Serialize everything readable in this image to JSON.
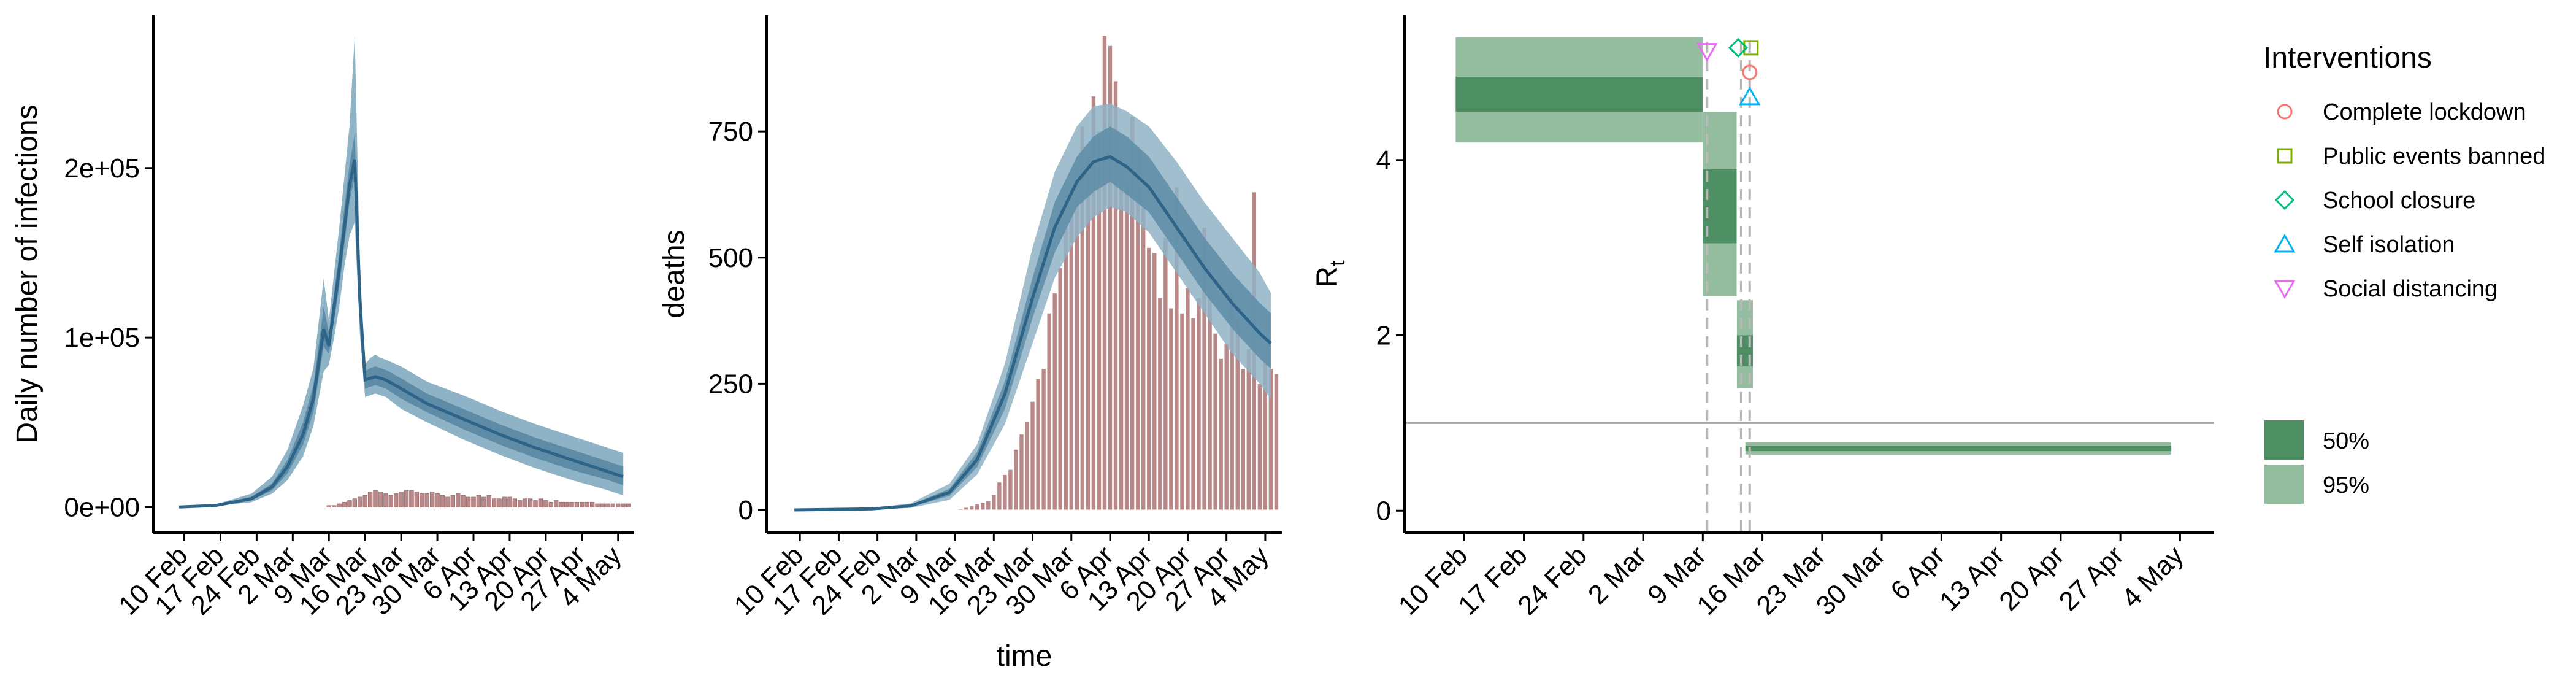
{
  "chart_data": [
    {
      "type": "area",
      "ylabel": "Daily number of infections",
      "xlabel": "",
      "x_range": [
        "2020-02-04",
        "2020-05-07"
      ],
      "ylim": [
        -15000,
        290000
      ],
      "xticks": [
        "10 Feb",
        "17 Feb",
        "24 Feb",
        "2 Mar",
        "9 Mar",
        "16 Mar",
        "23 Mar",
        "30 Mar",
        "6 Apr",
        "13 Apr",
        "20 Apr",
        "27 Apr",
        "4 May"
      ],
      "xtick_dates": [
        "2020-02-10",
        "2020-02-17",
        "2020-02-24",
        "2020-03-02",
        "2020-03-09",
        "2020-03-16",
        "2020-03-23",
        "2020-03-30",
        "2020-04-06",
        "2020-04-13",
        "2020-04-20",
        "2020-04-27",
        "2020-05-04"
      ],
      "yticks": [
        0,
        100000,
        200000
      ],
      "ytick_labels": [
        "0e+00",
        "1e+05",
        "2e+05"
      ],
      "colors": {
        "band95": "#8fb3c6",
        "band50": "#5e8ca7",
        "median": "#2e6487",
        "bar": "#b9898a"
      },
      "infections": {
        "dates": [
          "2020-02-09",
          "2020-02-16",
          "2020-02-23",
          "2020-02-27",
          "2020-03-01",
          "2020-03-04",
          "2020-03-06",
          "2020-03-08",
          "2020-03-09",
          "2020-03-10",
          "2020-03-11",
          "2020-03-12",
          "2020-03-13",
          "2020-03-14",
          "2020-03-15",
          "2020-03-16",
          "2020-03-17",
          "2020-03-18",
          "2020-03-19",
          "2020-03-20",
          "2020-03-23",
          "2020-03-28",
          "2020-04-04",
          "2020-04-11",
          "2020-04-18",
          "2020-04-25",
          "2020-05-02",
          "2020-05-05"
        ],
        "median": [
          100,
          1000,
          5000,
          12000,
          24000,
          43000,
          64000,
          105000,
          95000,
          118000,
          140000,
          165000,
          190000,
          205000,
          122000,
          75000,
          76000,
          77000,
          76000,
          75000,
          70000,
          61000,
          52000,
          43000,
          35000,
          28000,
          21000,
          18000
        ],
        "lo50": [
          80,
          800,
          4000,
          10000,
          20000,
          37000,
          56000,
          95000,
          90000,
          110000,
          130000,
          155000,
          180000,
          195000,
          112000,
          70000,
          71000,
          72000,
          71000,
          70000,
          64000,
          56000,
          46000,
          37000,
          29000,
          22000,
          16000,
          13000
        ],
        "hi50": [
          130,
          1200,
          6200,
          14000,
          28000,
          50000,
          72000,
          118000,
          103000,
          126000,
          150000,
          177000,
          202000,
          220000,
          130000,
          80000,
          82000,
          83000,
          82000,
          81000,
          76000,
          67000,
          58000,
          49000,
          41000,
          34000,
          27000,
          24000
        ],
        "lo95": [
          60,
          600,
          3000,
          8000,
          16000,
          30000,
          48000,
          80000,
          84000,
          100000,
          118000,
          142000,
          160000,
          168000,
          102000,
          65000,
          66000,
          67000,
          66000,
          65000,
          58000,
          50000,
          40000,
          31000,
          23000,
          16000,
          10000,
          7000
        ],
        "hi95": [
          170,
          1600,
          8000,
          18000,
          34000,
          60000,
          82000,
          135000,
          110000,
          138000,
          165000,
          195000,
          225000,
          278000,
          142000,
          84000,
          88000,
          90000,
          88000,
          87000,
          83000,
          74000,
          66000,
          57000,
          49000,
          42000,
          35000,
          32000
        ]
      },
      "deaths_bars": {
        "start_date": "2020-03-07",
        "values": [
          0,
          0,
          1,
          1,
          2,
          3,
          4,
          5,
          6,
          7,
          9,
          10,
          9,
          8,
          7,
          8,
          9,
          10,
          10,
          9,
          8,
          8,
          9,
          8,
          7,
          6,
          7,
          8,
          7,
          6,
          6,
          7,
          6,
          7,
          5,
          5,
          6,
          6,
          5,
          4,
          5,
          5,
          4,
          5,
          4,
          3,
          4,
          3,
          3,
          3,
          3,
          3,
          3,
          3,
          2,
          2,
          2,
          2,
          2,
          2,
          2
        ],
        "scale": 1
      }
    },
    {
      "type": "bar",
      "ylabel": "deaths",
      "xlabel": "time",
      "x_range": [
        "2020-02-04",
        "2020-05-07"
      ],
      "ylim": [
        -45,
        980
      ],
      "xticks": [
        "10 Feb",
        "17 Feb",
        "24 Feb",
        "2 Mar",
        "9 Mar",
        "16 Mar",
        "23 Mar",
        "30 Mar",
        "6 Apr",
        "13 Apr",
        "20 Apr",
        "27 Apr",
        "4 May"
      ],
      "xtick_dates": [
        "2020-02-10",
        "2020-02-17",
        "2020-02-24",
        "2020-03-02",
        "2020-03-09",
        "2020-03-16",
        "2020-03-23",
        "2020-03-30",
        "2020-04-06",
        "2020-04-13",
        "2020-04-20",
        "2020-04-27",
        "2020-05-04"
      ],
      "yticks": [
        0,
        250,
        500,
        750
      ],
      "ytick_labels": [
        "0",
        "250",
        "500",
        "750"
      ],
      "colors": {
        "band95": "#8fb3c6",
        "band50": "#5e8ca7",
        "median": "#2e6487",
        "bar": "#b9898a"
      },
      "deaths": {
        "start_date": "2020-03-07",
        "values": [
          0,
          0,
          0,
          2,
          5,
          8,
          12,
          15,
          18,
          30,
          55,
          70,
          80,
          120,
          150,
          175,
          215,
          260,
          280,
          390,
          430,
          480,
          560,
          600,
          680,
          760,
          700,
          820,
          750,
          940,
          920,
          850,
          700,
          650,
          780,
          720,
          600,
          520,
          510,
          420,
          540,
          400,
          640,
          390,
          440,
          380,
          420,
          560,
          430,
          350,
          300,
          330,
          430,
          380,
          280,
          320,
          630,
          250,
          300,
          280,
          270
        ],
        "ylim_data": [
          0,
          950
        ]
      },
      "fit": {
        "dates": [
          "2020-02-09",
          "2020-02-23",
          "2020-03-01",
          "2020-03-08",
          "2020-03-13",
          "2020-03-18",
          "2020-03-23",
          "2020-03-27",
          "2020-03-31",
          "2020-04-03",
          "2020-04-06",
          "2020-04-09",
          "2020-04-13",
          "2020-04-18",
          "2020-04-23",
          "2020-04-28",
          "2020-05-03",
          "2020-05-05"
        ],
        "median": [
          0,
          2,
          8,
          35,
          100,
          230,
          420,
          560,
          650,
          690,
          700,
          680,
          640,
          560,
          480,
          410,
          350,
          330
        ],
        "lo50": [
          0,
          1,
          6,
          28,
          85,
          200,
          380,
          510,
          600,
          630,
          650,
          625,
          590,
          510,
          430,
          360,
          300,
          280
        ],
        "hi50": [
          0,
          3,
          10,
          42,
          115,
          255,
          460,
          610,
          700,
          740,
          760,
          740,
          700,
          620,
          540,
          470,
          410,
          390
        ],
        "lo95": [
          0,
          1,
          4,
          20,
          70,
          170,
          330,
          460,
          540,
          580,
          600,
          590,
          550,
          470,
          390,
          310,
          250,
          220
        ],
        "hi95": [
          0,
          4,
          13,
          52,
          130,
          290,
          520,
          670,
          760,
          800,
          805,
          790,
          760,
          690,
          610,
          540,
          470,
          430
        ]
      }
    },
    {
      "type": "bar",
      "ylabel": "R",
      "ylabel_subscript": "t",
      "xlabel": "",
      "x_range": [
        "2020-02-03",
        "2020-05-08"
      ],
      "ylim": [
        -0.25,
        5.65
      ],
      "xticks": [
        "10 Feb",
        "17 Feb",
        "24 Feb",
        "2 Mar",
        "9 Mar",
        "16 Mar",
        "23 Mar",
        "30 Mar",
        "6 Apr",
        "13 Apr",
        "20 Apr",
        "27 Apr",
        "4 May"
      ],
      "xtick_dates": [
        "2020-02-10",
        "2020-02-17",
        "2020-02-24",
        "2020-03-02",
        "2020-03-09",
        "2020-03-16",
        "2020-03-23",
        "2020-03-30",
        "2020-04-06",
        "2020-04-13",
        "2020-04-20",
        "2020-04-27",
        "2020-05-04"
      ],
      "yticks": [
        0,
        2,
        4
      ],
      "ytick_labels": [
        "0",
        "2",
        "4"
      ],
      "reference_line": 1,
      "colors": {
        "ci50": "#4d8f63",
        "ci95": "#93bd9e",
        "ref": "#aaaaaa",
        "vline": "#b8b8b8"
      },
      "rt_segments": [
        {
          "start": "2020-02-09",
          "end": "2020-03-08",
          "lo95": 4.2,
          "hi95": 5.4,
          "lo50": 4.55,
          "hi50": 4.95
        },
        {
          "start": "2020-03-09",
          "end": "2020-03-12",
          "lo95": 2.45,
          "hi95": 4.55,
          "lo50": 3.05,
          "hi50": 3.9
        },
        {
          "start": "2020-03-13",
          "end": "2020-03-13.9",
          "lo95": 1.4,
          "hi95": 2.4,
          "lo50": 1.65,
          "hi50": 2.0
        },
        {
          "start": "2020-03-14",
          "end": "2020-05-02",
          "lo95": 0.64,
          "hi95": 0.78,
          "lo50": 0.68,
          "hi50": 0.74
        }
      ],
      "intervention_lines": [
        "2020-03-09",
        "2020-03-13",
        "2020-03-14"
      ],
      "interventions": [
        {
          "name": "Complete lockdown",
          "date": "2020-03-14",
          "value": 5.0,
          "shape": "circle",
          "color": "#f8766d"
        },
        {
          "name": "Public events banned",
          "date": "2020-03-14",
          "value": 5.28,
          "shape": "square",
          "color": "#7cae00"
        },
        {
          "name": "School closure",
          "date": "2020-03-13",
          "value": 5.28,
          "shape": "diamond",
          "color": "#00bf7d"
        },
        {
          "name": "Self isolation",
          "date": "2020-03-14",
          "value": 4.72,
          "shape": "triangle-up",
          "color": "#00b0f6"
        },
        {
          "name": "Social distancing",
          "date": "2020-03-09",
          "value": 5.24,
          "shape": "triangle-down",
          "color": "#e76bf3"
        }
      ],
      "legend": {
        "title": "Interventions",
        "ci_entries": [
          {
            "label": "50%",
            "color": "#4d8f63"
          },
          {
            "label": "95%",
            "color": "#93bd9e"
          }
        ]
      }
    }
  ]
}
